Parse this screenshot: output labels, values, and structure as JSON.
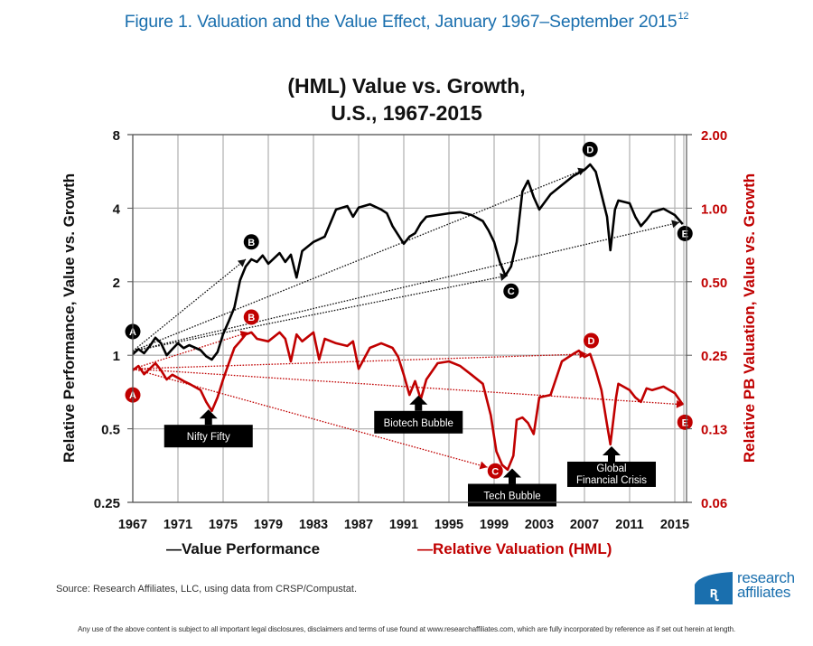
{
  "figure": {
    "title": "Figure 1. Valuation and the Value Effect, January 1967–September 2015",
    "title_superscript": "12",
    "source": "Source: Research Affiliates, LLC, using data from CRSP/Compustat.",
    "disclaimer": "Any use of the above content is subject to all important legal disclosures, disclaimers and terms of use found at www.researchaffiliates.com, which are fully incorporated by reference as if set out herein at length.",
    "logo": {
      "line1": "research",
      "line2": "affiliates",
      "color": "#1a6fae"
    }
  },
  "chart_data": {
    "type": "line",
    "title": [
      "(HML) Value vs. Growth,",
      "U.S., 1967-2015"
    ],
    "xlabel": "",
    "ylabel": "Relative Performance, Value vs. Growth",
    "ylabel_right": "Relative PB Valuation, Value vs. Growth",
    "x_range": [
      1967,
      2015.75
    ],
    "x_ticks": [
      "1967",
      "1971",
      "1975",
      "1979",
      "1983",
      "1987",
      "1991",
      "1995",
      "1999",
      "2003",
      "2007",
      "2011",
      "2015"
    ],
    "y_scale": "log2",
    "y_range": [
      0.25,
      8
    ],
    "y_ticks": [
      "8",
      "4",
      "2",
      "1",
      "0.5",
      "0.25"
    ],
    "y_tick_values": [
      8,
      4,
      2,
      1,
      0.5,
      0.25
    ],
    "y_right_scale": "log2",
    "y_right_range": [
      0.0625,
      2
    ],
    "y_right_ticks": [
      "2.00",
      "1.00",
      "0.50",
      "0.25",
      "0.13",
      "0.06"
    ],
    "y_right_tick_values": [
      2,
      1,
      0.5,
      0.25,
      0.125,
      0.0625
    ],
    "grid": true,
    "legend_position": "bottom",
    "series": [
      {
        "name": "Value Performance",
        "legend_label": "—Value Performance",
        "axis": "left",
        "color": "#000000",
        "x": [
          1967.0,
          1967.5,
          1968,
          1968.5,
          1969,
          1969.5,
          1970,
          1970.5,
          1971,
          1971.5,
          1972,
          1973,
          1973.5,
          1974,
          1974.5,
          1975,
          1975.5,
          1976,
          1976.5,
          1977,
          1977.5,
          1978,
          1978.5,
          1979,
          1980,
          1980.5,
          1981,
          1981.5,
          1982,
          1983,
          1984,
          1985,
          1986,
          1986.5,
          1987,
          1988,
          1989,
          1989.5,
          1990,
          1991,
          1991.5,
          1992,
          1992.5,
          1993,
          1994,
          1995,
          1996,
          1997,
          1998,
          1998.5,
          1999,
          1999.5,
          2000,
          2000.5,
          2001,
          2001.5,
          2002,
          2002.5,
          2003,
          2004,
          2005,
          2006,
          2007,
          2007.5,
          2008,
          2008.5,
          2009,
          2009.3,
          2009.7,
          2010,
          2011,
          2011.5,
          2012,
          2012.5,
          2013,
          2014,
          2015,
          2015.7
        ],
        "values": [
          1.01,
          1.06,
          1.02,
          1.09,
          1.18,
          1.12,
          1.0,
          1.06,
          1.12,
          1.07,
          1.1,
          1.05,
          0.99,
          0.96,
          1.03,
          1.22,
          1.38,
          1.57,
          2.03,
          2.31,
          2.47,
          2.41,
          2.56,
          2.37,
          2.62,
          2.41,
          2.58,
          2.08,
          2.67,
          2.91,
          3.06,
          3.95,
          4.08,
          3.69,
          4.02,
          4.15,
          3.95,
          3.81,
          3.38,
          2.86,
          3.06,
          3.16,
          3.47,
          3.69,
          3.75,
          3.81,
          3.85,
          3.75,
          3.54,
          3.24,
          2.91,
          2.41,
          2.12,
          2.31,
          2.91,
          4.68,
          5.18,
          4.44,
          3.95,
          4.56,
          4.97,
          5.41,
          5.74,
          6.04,
          5.64,
          4.56,
          3.69,
          2.69,
          3.95,
          4.3,
          4.19,
          3.69,
          3.38,
          3.59,
          3.85,
          3.98,
          3.75,
          3.44
        ]
      },
      {
        "name": "Relative Valuation (HML)",
        "legend_label": "—Relative Valuation (HML)",
        "axis": "right",
        "color": "#c00000",
        "x": [
          1967,
          1967.5,
          1968,
          1968.5,
          1969,
          1969.5,
          1970,
          1970.5,
          1971,
          1971.5,
          1972,
          1973,
          1973.5,
          1974,
          1974.5,
          1975,
          1975.5,
          1976,
          1976.5,
          1977,
          1977.5,
          1978,
          1979,
          1980,
          1980.5,
          1981,
          1981.5,
          1982,
          1983,
          1983.5,
          1984,
          1985,
          1986,
          1986.5,
          1987,
          1988,
          1989,
          1990,
          1990.5,
          1991,
          1991.5,
          1992,
          1992.5,
          1993,
          1994,
          1995,
          1996,
          1997,
          1998,
          1998.7,
          1999.2,
          1999.7,
          2000.2,
          2000.7,
          2001,
          2001.5,
          2002,
          2002.5,
          2003,
          2004,
          2005,
          2006,
          2006.5,
          2007,
          2007.5,
          2008,
          2008.5,
          2009,
          2009.3,
          2009.8,
          2010,
          2011,
          2011.5,
          2012,
          2012.5,
          2013,
          2014,
          2015,
          2015.7
        ],
        "values": [
          0.217,
          0.226,
          0.209,
          0.22,
          0.232,
          0.217,
          0.199,
          0.208,
          0.202,
          0.196,
          0.191,
          0.18,
          0.161,
          0.148,
          0.168,
          0.199,
          0.232,
          0.268,
          0.285,
          0.304,
          0.31,
          0.292,
          0.285,
          0.31,
          0.292,
          0.236,
          0.304,
          0.285,
          0.31,
          0.24,
          0.292,
          0.28,
          0.273,
          0.285,
          0.22,
          0.268,
          0.28,
          0.268,
          0.246,
          0.208,
          0.172,
          0.196,
          0.165,
          0.199,
          0.232,
          0.236,
          0.226,
          0.208,
          0.191,
          0.142,
          0.101,
          0.089,
          0.085,
          0.097,
          0.136,
          0.139,
          0.132,
          0.119,
          0.168,
          0.172,
          0.236,
          0.253,
          0.261,
          0.246,
          0.253,
          0.217,
          0.18,
          0.13,
          0.108,
          0.168,
          0.191,
          0.18,
          0.168,
          0.161,
          0.183,
          0.18,
          0.186,
          0.175,
          0.157
        ]
      }
    ],
    "trend_lines": [
      {
        "series": "Value Performance",
        "from": [
          1967.0,
          1.04
        ],
        "to": [
          1977.0,
          2.47
        ],
        "label": "B"
      },
      {
        "series": "Value Performance",
        "from": [
          1967.0,
          1.04
        ],
        "to": [
          2000.2,
          2.12
        ],
        "label": "C"
      },
      {
        "series": "Value Performance",
        "from": [
          1967.0,
          1.04
        ],
        "to": [
          2007.1,
          5.79
        ],
        "label": "D"
      },
      {
        "series": "Value Performance",
        "from": [
          1967.0,
          1.04
        ],
        "to": [
          2015.4,
          3.5
        ],
        "label": "E"
      },
      {
        "series": "Relative Valuation (HML)",
        "from": [
          1967.0,
          0.22
        ],
        "to": [
          1977.2,
          0.31
        ],
        "label": "B"
      },
      {
        "series": "Relative Valuation (HML)",
        "from": [
          1967.0,
          0.22
        ],
        "to": [
          1998.4,
          0.087
        ],
        "label": "C"
      },
      {
        "series": "Relative Valuation (HML)",
        "from": [
          1967.0,
          0.22
        ],
        "to": [
          2007.2,
          0.253
        ],
        "label": "D"
      },
      {
        "series": "Relative Valuation (HML)",
        "from": [
          1967.0,
          0.22
        ],
        "to": [
          2015.8,
          0.157
        ],
        "label": "E"
      }
    ],
    "point_markers": [
      {
        "label": "A",
        "series": "Value Performance",
        "x": 1967.0,
        "y": 1.25
      },
      {
        "label": "B",
        "series": "Value Performance",
        "x": 1977.5,
        "y": 2.91
      },
      {
        "label": "C",
        "series": "Value Performance",
        "x": 2000.5,
        "y": 1.83
      },
      {
        "label": "D",
        "series": "Value Performance",
        "x": 2007.5,
        "y": 6.96
      },
      {
        "label": "E",
        "series": "Value Performance",
        "x": 2015.9,
        "y": 3.15
      },
      {
        "label": "A",
        "series": "Relative Valuation (HML)",
        "x": 1967.0,
        "y": 0.172
      },
      {
        "label": "B",
        "series": "Relative Valuation (HML)",
        "x": 1977.5,
        "y": 0.358
      },
      {
        "label": "C",
        "series": "Relative Valuation (HML)",
        "x": 1999.1,
        "y": 0.084
      },
      {
        "label": "D",
        "series": "Relative Valuation (HML)",
        "x": 2007.6,
        "y": 0.287
      },
      {
        "label": "E",
        "series": "Relative Valuation (HML)",
        "x": 2015.9,
        "y": 0.133
      }
    ],
    "callouts": [
      {
        "lines": [
          "Nifty Fifty"
        ],
        "x": 1973.7,
        "y_right": 0.15
      },
      {
        "lines": [
          "Biotech Bubble"
        ],
        "x": 1992.3,
        "y_right": 0.171
      },
      {
        "lines": [
          "Tech Bubble"
        ],
        "x": 2000.6,
        "y_right": 0.086
      },
      {
        "lines": [
          "Global",
          "Financial Crisis"
        ],
        "x": 2009.4,
        "y_right": 0.106
      }
    ]
  }
}
